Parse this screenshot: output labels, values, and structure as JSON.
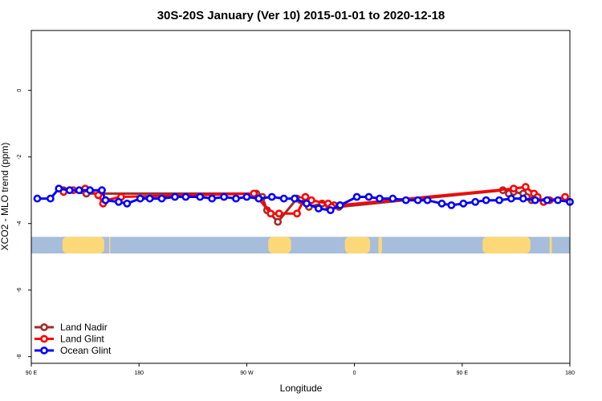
{
  "chart_data": {
    "type": "line",
    "title": "30S-20S January (Ver 10)   2015-01-01 to 2020-12-18",
    "xlabel": "Longitude",
    "ylabel": "XCO2 - MLO trend (ppm)",
    "xlim": [
      90,
      540
    ],
    "ylim": [
      -8.2,
      1.8
    ],
    "x_ticks": [
      90,
      180,
      270,
      360,
      450,
      540
    ],
    "x_tick_labels": [
      "90 E",
      "180",
      "90 W",
      "0",
      "90 E",
      "180"
    ],
    "y_ticks": [
      0,
      -2,
      -4,
      -6,
      -8
    ],
    "y_tick_labels": [
      "0",
      "-2",
      "-4",
      "-6",
      "-8"
    ],
    "grid": false,
    "legend_position": "bottom-left",
    "landmask_band": {
      "y_range": [
        -4.9,
        -4.4
      ],
      "ocean_color": "#a6bddb",
      "land_color": "#fdd878",
      "land_spans": [
        [
          116,
          151
        ],
        [
          155,
          156
        ],
        [
          288,
          307
        ],
        [
          352,
          373
        ],
        [
          380,
          383
        ],
        [
          467,
          507
        ],
        [
          523,
          525
        ]
      ]
    },
    "series": [
      {
        "name": "Land Nadir",
        "color": "#a52a2a",
        "x": [
          117,
          136,
          278,
          283,
          287,
          296,
          312,
          315,
          319,
          322,
          333,
          339,
          343,
          347,
          484,
          489,
          493,
          501,
          504,
          508
        ],
        "y": [
          -3.0,
          -3.1,
          -3.1,
          -3.2,
          -3.6,
          -3.95,
          -3.25,
          -3.3,
          -3.35,
          -3.5,
          -3.4,
          -3.5,
          -3.45,
          -3.5,
          -3.0,
          -3.1,
          -3.05,
          -3.1,
          -3.2,
          -3.3
        ]
      },
      {
        "name": "Land Glint",
        "color": "#ff0000",
        "x": [
          117,
          125,
          135,
          146,
          150,
          152,
          165,
          276,
          280,
          290,
          297,
          312,
          319,
          324,
          338,
          341,
          348,
          493,
          503,
          510,
          513,
          518,
          523,
          536
        ],
        "y": [
          -3.05,
          -3.0,
          -2.95,
          -3.15,
          -3.4,
          -3.3,
          -3.2,
          -3.1,
          -3.25,
          -3.7,
          -3.7,
          -3.7,
          -3.2,
          -3.3,
          -3.4,
          -3.5,
          -3.45,
          -2.95,
          -2.9,
          -3.1,
          -3.2,
          -3.35,
          -3.3,
          -3.2
        ]
      },
      {
        "name": "Ocean Glint",
        "color": "#0000ff",
        "x": [
          95,
          106,
          113,
          122,
          130,
          139,
          149,
          152,
          163,
          170,
          181,
          189,
          199,
          210,
          219,
          231,
          241,
          251,
          261,
          270,
          280,
          291,
          301,
          310,
          320,
          330,
          340,
          348,
          362,
          372,
          381,
          392,
          403,
          413,
          421,
          433,
          441,
          451,
          461,
          470,
          481,
          491,
          501,
          511,
          521,
          530,
          540
        ],
        "y": [
          -3.25,
          -3.25,
          -2.95,
          -3.0,
          -3.0,
          -3.0,
          -3.0,
          -3.3,
          -3.35,
          -3.4,
          -3.25,
          -3.25,
          -3.25,
          -3.2,
          -3.2,
          -3.2,
          -3.25,
          -3.2,
          -3.25,
          -3.2,
          -3.25,
          -3.2,
          -3.25,
          -3.25,
          -3.4,
          -3.55,
          -3.6,
          -3.45,
          -3.2,
          -3.2,
          -3.25,
          -3.25,
          -3.3,
          -3.3,
          -3.3,
          -3.4,
          -3.45,
          -3.4,
          -3.35,
          -3.3,
          -3.3,
          -3.25,
          -3.25,
          -3.3,
          -3.3,
          -3.3,
          -3.35
        ]
      }
    ]
  }
}
